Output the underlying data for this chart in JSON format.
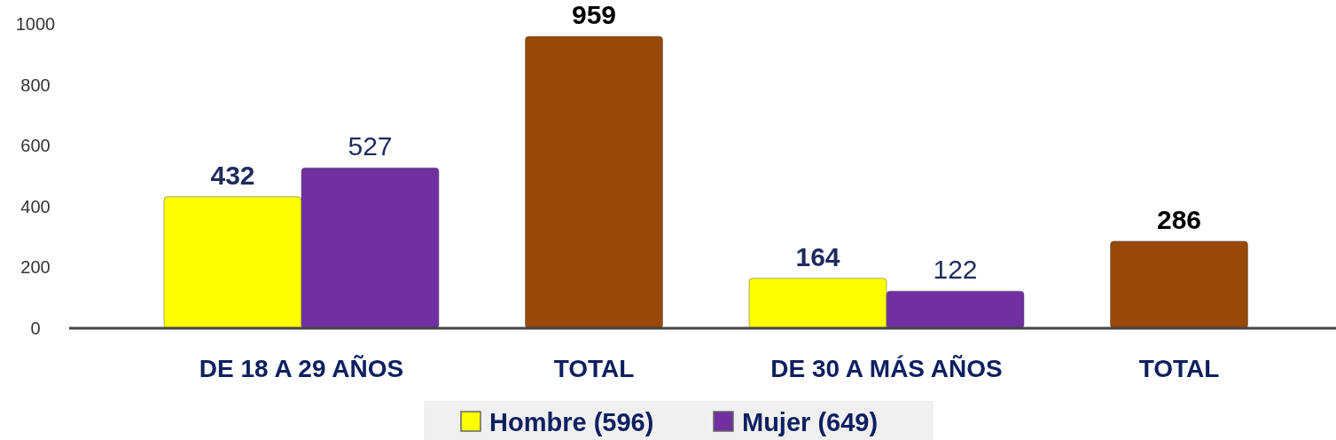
{
  "chart_data": {
    "type": "bar",
    "categories": [
      "DE 18 A 29 AÑOS",
      "TOTAL",
      "DE 30 A MÁS AÑOS",
      "TOTAL"
    ],
    "series": [
      {
        "name": "Hombre (596)",
        "color": "#ffff00",
        "values": [
          432,
          null,
          164,
          null
        ]
      },
      {
        "name": "Mujer (649)",
        "color": "#7030a0",
        "values": [
          527,
          null,
          122,
          null
        ]
      },
      {
        "color": "#984807",
        "values": [
          null,
          959,
          null,
          286
        ]
      }
    ],
    "ylim": [
      0,
      1000
    ],
    "yticks": [
      0,
      200,
      400,
      600,
      800,
      1000
    ],
    "data_labels": true,
    "legend": "bottom",
    "grid": false
  }
}
